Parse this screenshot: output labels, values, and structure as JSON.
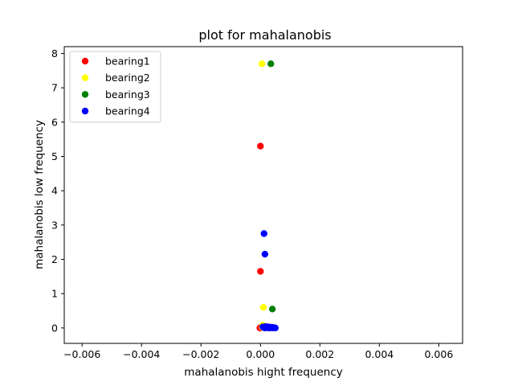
{
  "chart_data": {
    "type": "scatter",
    "title": "plot for mahalanobis",
    "xlabel": "mahalanobis hight frequency",
    "ylabel": "mahalanobis low frequency",
    "xlim": [
      -0.0066,
      0.0068
    ],
    "ylim": [
      -0.45,
      8.2
    ],
    "xticks": [
      -0.006,
      -0.004,
      -0.002,
      0.0,
      0.002,
      0.004,
      0.006
    ],
    "xtick_labels": [
      "−0.006",
      "−0.004",
      "−0.002",
      "0.000",
      "0.002",
      "0.004",
      "0.006"
    ],
    "yticks": [
      0,
      1,
      2,
      3,
      4,
      5,
      6,
      7,
      8
    ],
    "ytick_labels": [
      "0",
      "1",
      "2",
      "3",
      "4",
      "5",
      "6",
      "7",
      "8"
    ],
    "grid": false,
    "legend_position": "top-left",
    "series": [
      {
        "name": "bearing1",
        "color": "#ff0000",
        "points": [
          [
            0.0,
            5.3
          ],
          [
            0.0,
            1.65
          ],
          [
            -2e-05,
            0.0
          ],
          [
            2e-05,
            0.02
          ],
          [
            4e-05,
            0.01
          ]
        ]
      },
      {
        "name": "bearing2",
        "color": "#ffff00",
        "points": [
          [
            5e-05,
            7.7
          ],
          [
            0.0001,
            0.6
          ],
          [
            8e-05,
            0.08
          ],
          [
            6e-05,
            0.02
          ],
          [
            0.0001,
            0.01
          ]
        ]
      },
      {
        "name": "bearing3",
        "color": "#008000",
        "points": [
          [
            0.00035,
            7.7
          ],
          [
            0.0004,
            0.55
          ],
          [
            0.0002,
            0.02
          ],
          [
            0.0003,
            0.0
          ],
          [
            0.00025,
            0.01
          ]
        ]
      },
      {
        "name": "bearing4",
        "color": "#0000ff",
        "points": [
          [
            0.00012,
            2.75
          ],
          [
            0.00015,
            2.15
          ],
          [
            8e-05,
            0.03
          ],
          [
            0.00012,
            0.01
          ],
          [
            0.00016,
            0.0
          ],
          [
            0.0002,
            0.02
          ],
          [
            0.00025,
            0.01
          ],
          [
            0.0003,
            0.0
          ],
          [
            0.00035,
            0.01
          ],
          [
            0.0004,
            0.0
          ],
          [
            0.00045,
            0.01
          ],
          [
            0.0005,
            0.0
          ],
          [
            0.00018,
            0.04
          ],
          [
            0.00028,
            0.03
          ],
          [
            0.00038,
            0.02
          ]
        ]
      }
    ]
  }
}
